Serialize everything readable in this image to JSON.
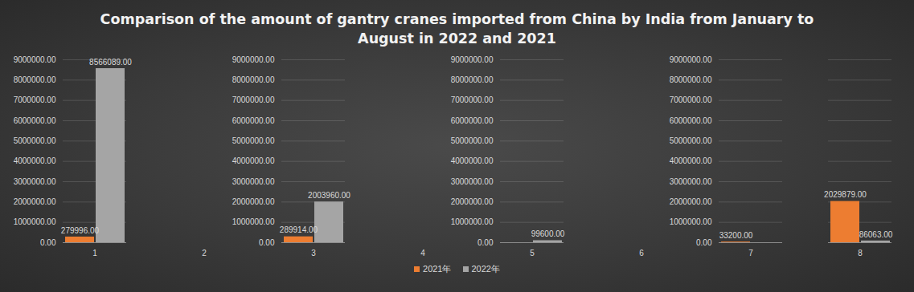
{
  "chart_data": {
    "type": "bar",
    "title": "Comparison of the amount of gantry cranes imported from China by India from January to August in 2022 and 2021",
    "categories": [
      "1",
      "2",
      "3",
      "4",
      "5",
      "6",
      "7",
      "8"
    ],
    "series": [
      {
        "name": "2021年",
        "color": "#ed7d31",
        "values": [
          279996,
          null,
          289914,
          null,
          null,
          null,
          33200,
          2029879
        ],
        "value_labels": [
          "279996.00",
          null,
          "289914.00",
          null,
          null,
          null,
          "33200.00",
          "2029879.00"
        ]
      },
      {
        "name": "2022年",
        "color": "#a5a5a5",
        "values": [
          8566089,
          null,
          2003960,
          null,
          99600,
          null,
          null,
          86063
        ],
        "value_labels": [
          "8566089.00",
          null,
          "2003960.00",
          null,
          "99600.00",
          null,
          null,
          "86063.00"
        ]
      }
    ],
    "ylim": [
      0,
      9000000
    ],
    "yticks": [
      {
        "value": 0,
        "label": "0.00"
      },
      {
        "value": 1000000,
        "label": "1000000.00"
      },
      {
        "value": 2000000,
        "label": "2000000.00"
      },
      {
        "value": 3000000,
        "label": "3000000.00"
      },
      {
        "value": 4000000,
        "label": "4000000.00"
      },
      {
        "value": 5000000,
        "label": "5000000.00"
      },
      {
        "value": 6000000,
        "label": "6000000.00"
      },
      {
        "value": 7000000,
        "label": "7000000.00"
      },
      {
        "value": 8000000,
        "label": "8000000.00"
      },
      {
        "value": 9000000,
        "label": "9000000.00"
      }
    ],
    "grid": true,
    "legend": "bottom",
    "data_labels": true
  }
}
